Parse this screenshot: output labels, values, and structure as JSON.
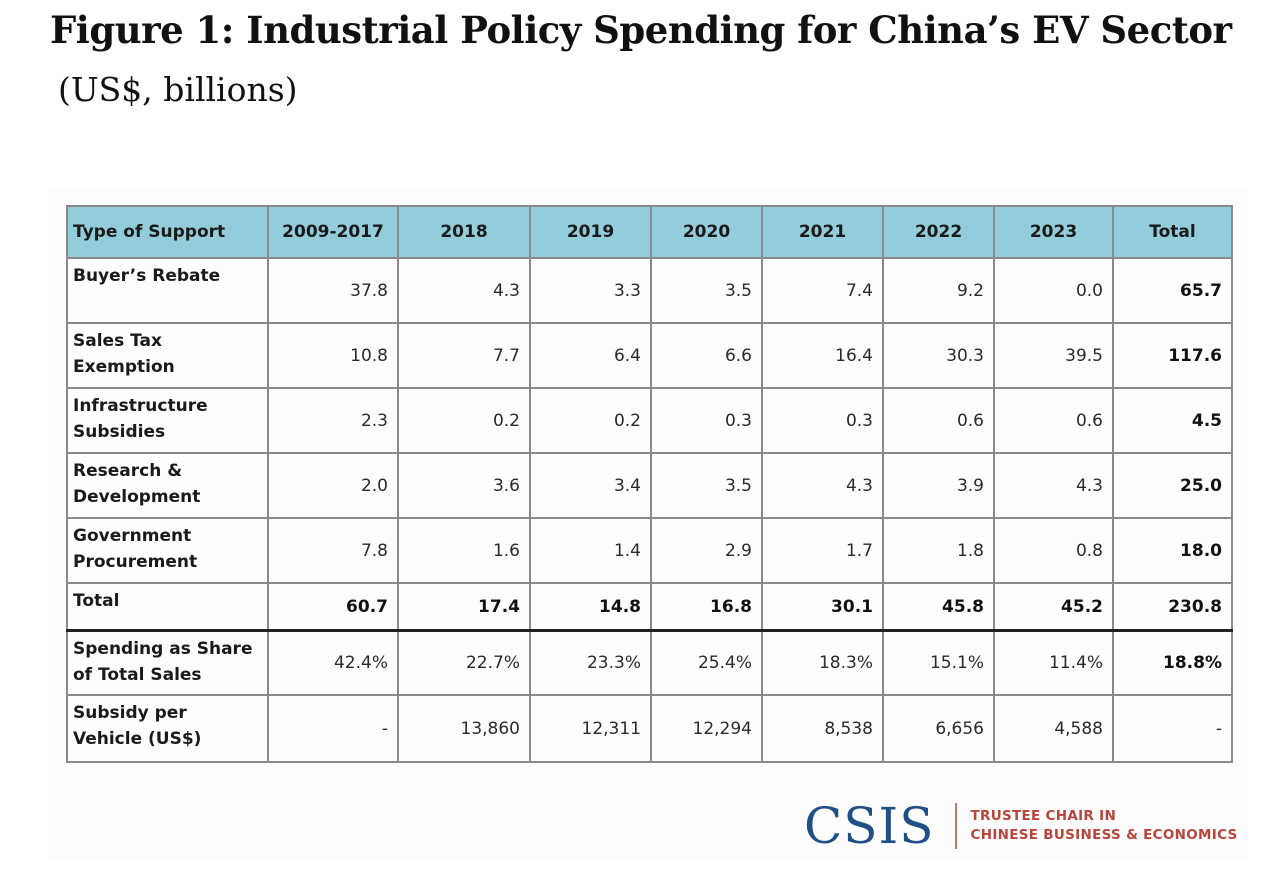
{
  "figure": {
    "title": "Figure 1: Industrial Policy Spending for China’s EV Sector",
    "subtitle": "(US$, billions)"
  },
  "table": {
    "headers": [
      "Type of Support",
      "2009-2017",
      "2018",
      "2019",
      "2020",
      "2021",
      "2022",
      "2023",
      "Total"
    ],
    "rows": [
      {
        "label_lines": [
          "Buyer’s Rebate",
          ""
        ],
        "values": [
          "37.8",
          "4.3",
          "3.3",
          "3.5",
          "7.4",
          "9.2",
          "0.0",
          "65.7"
        ]
      },
      {
        "label_lines": [
          "Sales Tax",
          "Exemption"
        ],
        "values": [
          "10.8",
          "7.7",
          "6.4",
          "6.6",
          "16.4",
          "30.3",
          "39.5",
          "117.6"
        ]
      },
      {
        "label_lines": [
          "Infrastructure",
          "Subsidies"
        ],
        "values": [
          "2.3",
          "0.2",
          "0.2",
          "0.3",
          "0.3",
          "0.6",
          "0.6",
          "4.5"
        ]
      },
      {
        "label_lines": [
          "Research &",
          "Development"
        ],
        "values": [
          "2.0",
          "3.6",
          "3.4",
          "3.5",
          "4.3",
          "3.9",
          "4.3",
          "25.0"
        ]
      },
      {
        "label_lines": [
          "Government",
          "Procurement"
        ],
        "values": [
          "7.8",
          "1.6",
          "1.4",
          "2.9",
          "1.7",
          "1.8",
          "0.8",
          "18.0"
        ]
      }
    ],
    "total_row": {
      "label": "Total",
      "values": [
        "60.7",
        "17.4",
        "14.8",
        "16.8",
        "30.1",
        "45.8",
        "45.2",
        "230.8"
      ]
    },
    "share_row": {
      "label_lines": [
        "Spending as Share",
        "of Total Sales"
      ],
      "values": [
        "42.4%",
        "22.7%",
        "23.3%",
        "25.4%",
        "18.3%",
        "15.1%",
        "11.4%",
        "18.8%"
      ]
    },
    "vehicle_row": {
      "label_lines": [
        "Subsidy per",
        "Vehicle (US$)"
      ],
      "values": [
        "-",
        "13,860",
        "12,311",
        "12,294",
        "8,538",
        "6,656",
        "4,588",
        "-"
      ]
    }
  },
  "logo": {
    "mark": "CSIS",
    "line1": "TRUSTEE CHAIR IN",
    "line2": "CHINESE BUSINESS & ECONOMICS"
  },
  "colors": {
    "header_fill": "#93cddb",
    "logo_blue": "#1f4f86",
    "logo_red": "#b8443a"
  }
}
